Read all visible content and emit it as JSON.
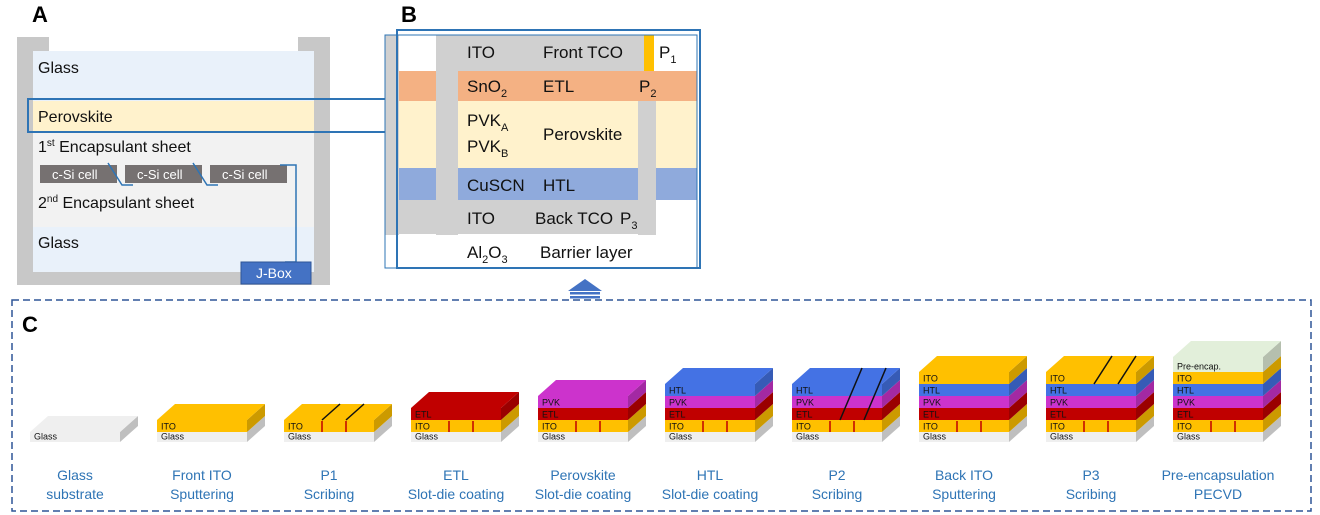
{
  "panels": {
    "a": "A",
    "b": "B",
    "c": "C"
  },
  "panel_a": {
    "glass_top": "Glass",
    "perovskite": "Perovskite",
    "encap1_pre": "1",
    "encap1_sup": "st",
    "encap1_post": " Encapsulant sheet",
    "cells": [
      "c-Si cell",
      "c-Si cell",
      "c-Si cell"
    ],
    "encap2_pre": "2",
    "encap2_sup": "nd",
    "encap2_post": " Encapsulant sheet",
    "glass_bottom": "Glass",
    "jbox": "J-Box"
  },
  "panel_b": {
    "ito_front": "ITO",
    "front_tco": "Front TCO",
    "p1": "P",
    "p1_sub": "1",
    "sno2": "SnO",
    "sno2_sub": "2",
    "etl": "ETL",
    "p2": "P",
    "p2_sub": "2",
    "pvka": "PVK",
    "pvka_sub": "A",
    "pvkb": "PVK",
    "pvkb_sub": "B",
    "perovskite": "Perovskite",
    "cuscn": "CuSCN",
    "htl": "HTL",
    "ito_back": "ITO",
    "back_tco": "Back TCO",
    "p3": "P",
    "p3_sub": "3",
    "al2o3_a": "Al",
    "al2o3_b": "2",
    "al2o3_c": "O",
    "al2o3_d": "3",
    "barrier": "Barrier layer"
  },
  "panel_c": {
    "steps": [
      {
        "line1": "Glass",
        "line2": "substrate",
        "layers": [
          "Glass"
        ]
      },
      {
        "line1": "Front ITO",
        "line2": "Sputtering",
        "layers": [
          "Glass",
          "ITO"
        ]
      },
      {
        "line1": "P1",
        "line2": "Scribing",
        "layers": [
          "Glass",
          "ITO"
        ]
      },
      {
        "line1": "ETL",
        "line2": "Slot-die coating",
        "layers": [
          "Glass",
          "ITO",
          "ETL"
        ]
      },
      {
        "line1": "Perovskite",
        "line2": "Slot-die coating",
        "layers": [
          "Glass",
          "ITO",
          "ETL",
          "PVK"
        ]
      },
      {
        "line1": "HTL",
        "line2": "Slot-die coating",
        "layers": [
          "Glass",
          "ITO",
          "ETL",
          "PVK",
          "HTL"
        ]
      },
      {
        "line1": "P2",
        "line2": "Scribing",
        "layers": [
          "Glass",
          "ITO",
          "ETL",
          "PVK",
          "HTL"
        ]
      },
      {
        "line1": "Back ITO",
        "line2": "Sputtering",
        "layers": [
          "Glass",
          "ITO",
          "ETL",
          "PVK",
          "HTL",
          "ITO"
        ]
      },
      {
        "line1": "P3",
        "line2": "Scribing",
        "layers": [
          "Glass",
          "ITO",
          "ETL",
          "PVK",
          "HTL",
          "ITO"
        ]
      },
      {
        "line1": "Pre-encapsulation",
        "line2": "PECVD",
        "layers": [
          "Glass",
          "ITO",
          "ETL",
          "PVK",
          "HTL",
          "ITO",
          "Pre-encap."
        ]
      }
    ]
  },
  "colors": {
    "glass_panel": "#e9f1fa",
    "glass_frame": "#c8c8c8",
    "perovskite_layer": "#fff2cc",
    "cell": "#767171",
    "jbox": "#4472c4",
    "outline_blue": "#2e74b5",
    "ito": "#ffc000",
    "etl_b": "#f4b183",
    "htl_b": "#8faadc",
    "pvk_b": "#fff2cc",
    "stack_glass": "#efefef",
    "stack_ito": "#ffc000",
    "stack_etl": "#c00000",
    "stack_pvk": "#cc33cc",
    "stack_htl": "#4472e4",
    "stack_preencap": "#e2efda"
  }
}
